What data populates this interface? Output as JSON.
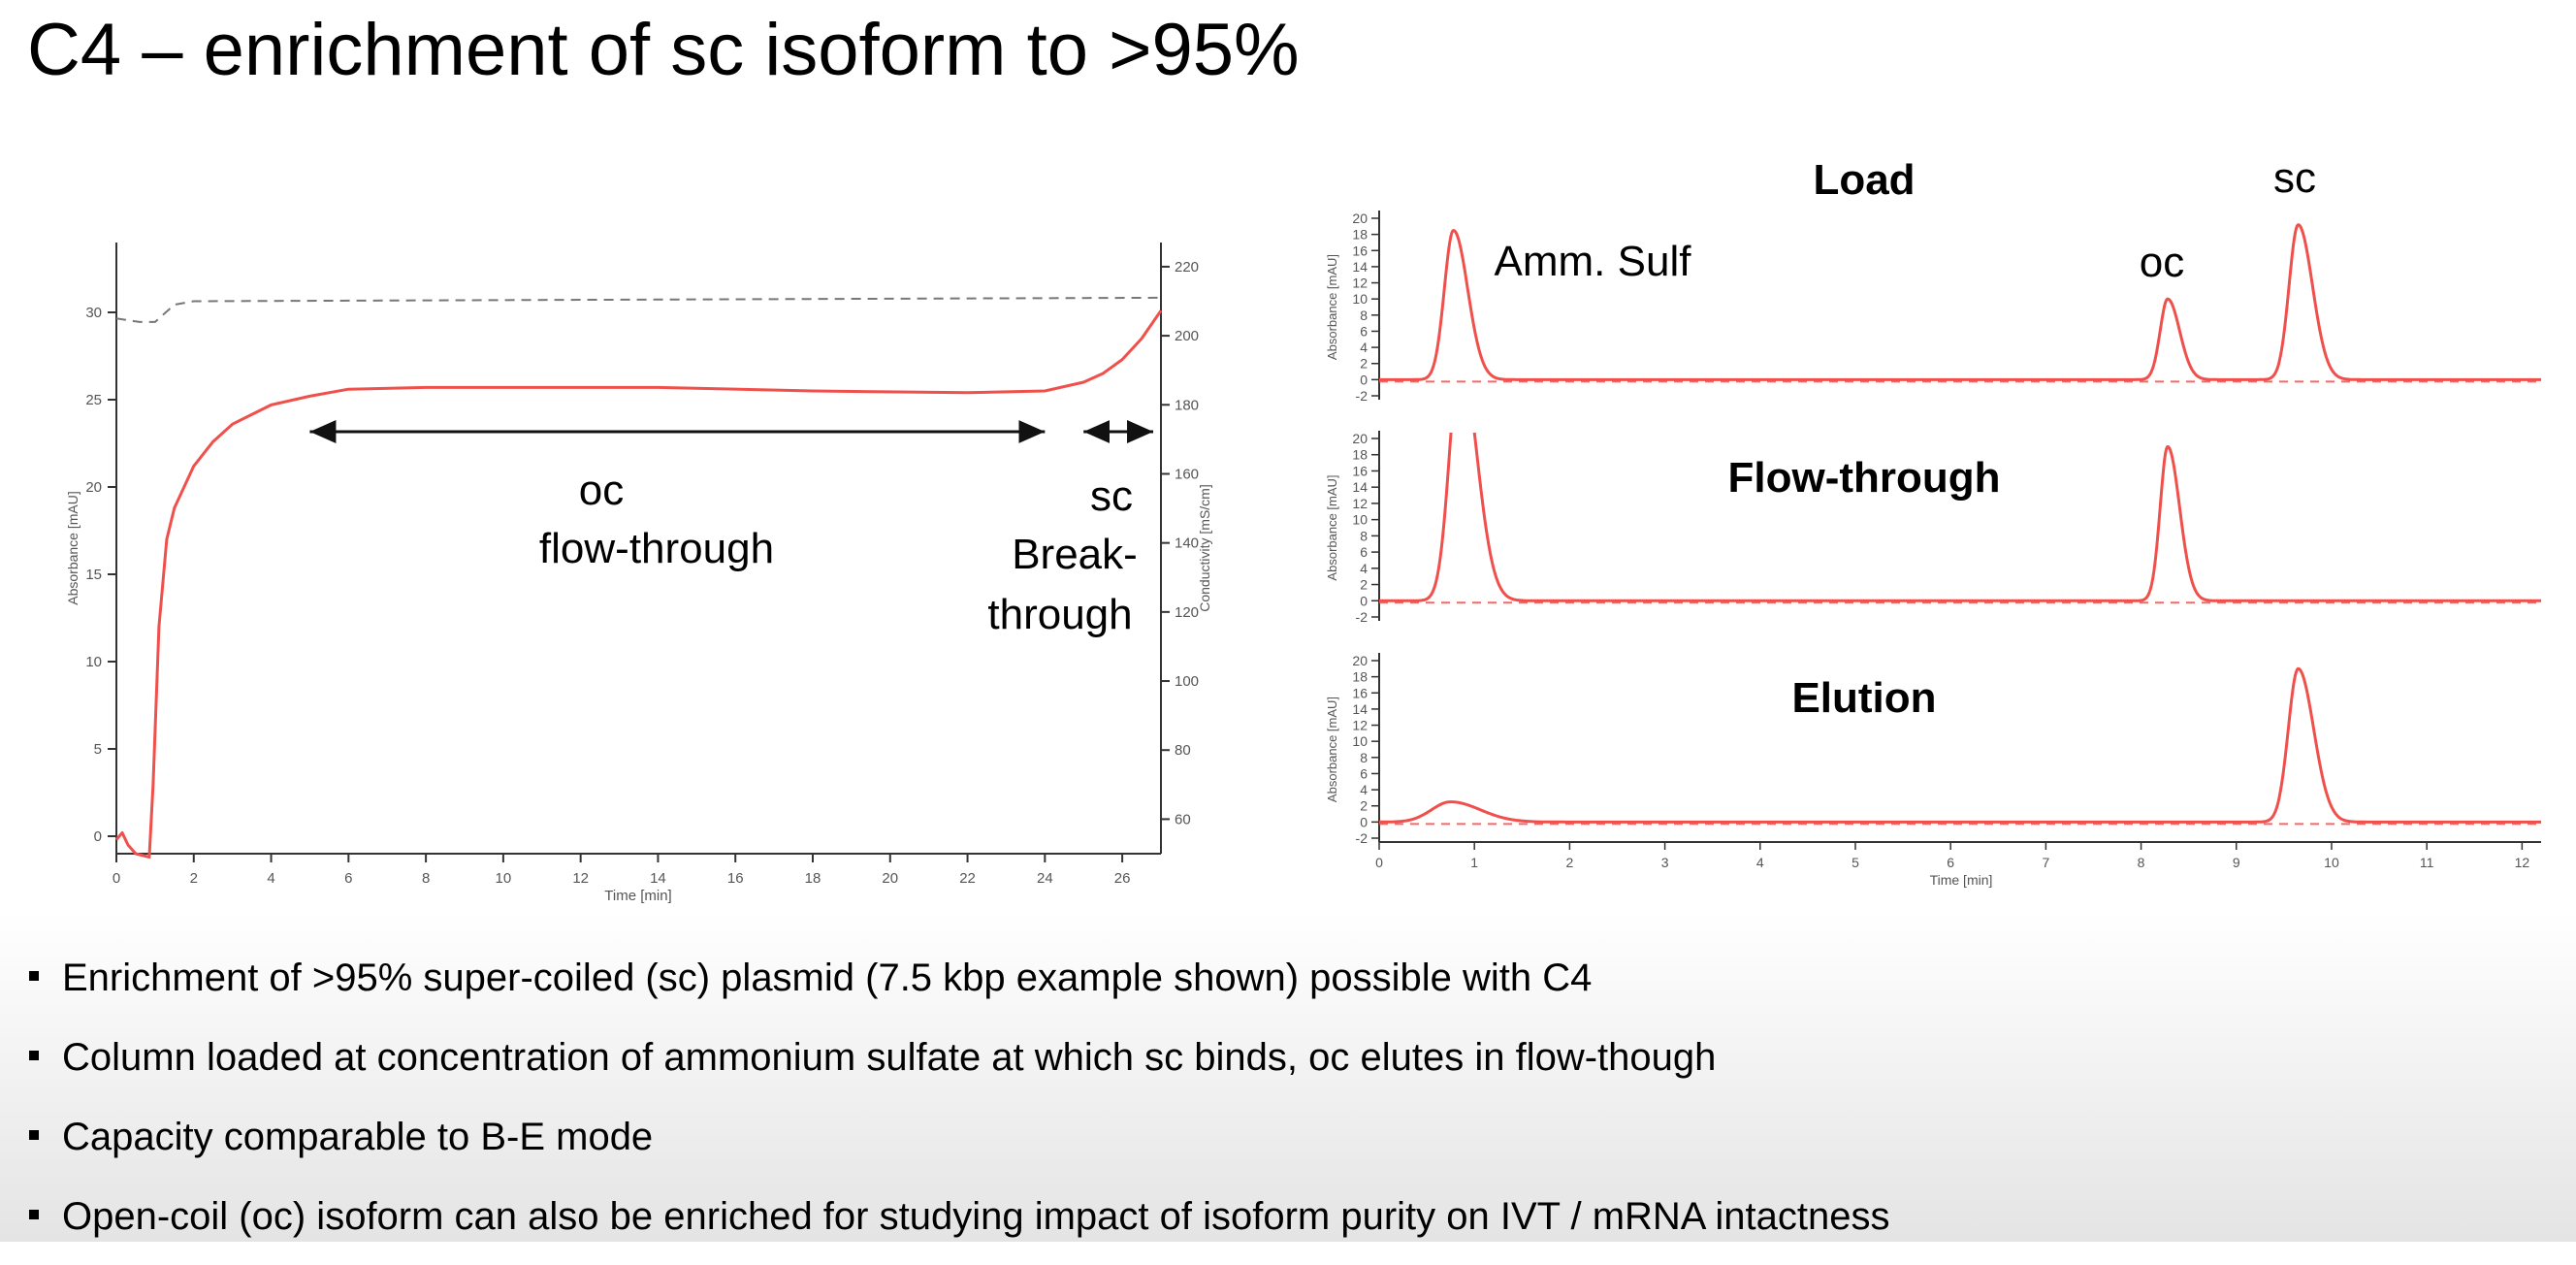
{
  "title": "C4 – enrichment of sc isoform to >95%",
  "colors": {
    "trace": "#f0504c",
    "axis": "#333333",
    "dashed": "#777777"
  },
  "left_chart": {
    "xlabel": "Time [min]",
    "ylabel": "Absorbance [mAU]",
    "y2label": "Conductivity [mS/cm]",
    "annotations": {
      "oc_line1": "oc",
      "oc_line2": "flow-through",
      "sc_line1": "sc",
      "sc_line2": "Break-",
      "sc_line3": "through"
    }
  },
  "right_chart": {
    "xlabel": "Time [min]",
    "ylabel": "Absorbance [mAU]",
    "panels": [
      {
        "title": "Load",
        "labels": [
          "Amm. Sulf",
          "oc",
          "sc"
        ]
      },
      {
        "title": "Flow-through"
      },
      {
        "title": "Elution"
      }
    ]
  },
  "chart_data": [
    {
      "type": "line",
      "xlabel": "Time [min]",
      "ylabel": "Absorbance [mAU]",
      "y2label": "Conductivity [mS/cm]",
      "xlim": [
        0,
        27
      ],
      "ylim": [
        -1,
        34
      ],
      "y2lim": [
        50,
        227
      ],
      "xticks": [
        0,
        2,
        4,
        6,
        8,
        10,
        12,
        14,
        16,
        18,
        20,
        22,
        24,
        26
      ],
      "yticks": [
        0,
        5,
        10,
        15,
        20,
        25,
        30
      ],
      "y2ticks": [
        60,
        80,
        100,
        120,
        140,
        160,
        180,
        200,
        220
      ],
      "series": [
        {
          "axis": "left",
          "x": [
            0,
            0.15,
            0.3,
            0.5,
            0.85,
            0.95,
            1.1,
            1.3,
            1.5,
            2,
            2.5,
            3,
            4,
            5,
            6,
            8,
            10,
            14,
            18,
            22,
            24,
            25,
            25.5,
            26,
            26.5,
            27
          ],
          "y": [
            -0.2,
            0.2,
            -0.5,
            -1.0,
            -1.2,
            3,
            12,
            17,
            18.8,
            21.2,
            22.6,
            23.6,
            24.7,
            25.2,
            25.6,
            25.7,
            25.7,
            25.7,
            25.5,
            25.4,
            25.5,
            26,
            26.5,
            27.3,
            28.5,
            30.1
          ]
        },
        {
          "axis": "right",
          "x": [
            0,
            0.6,
            1.0,
            1.5,
            2,
            27
          ],
          "y": [
            205,
            204,
            204,
            209,
            210,
            211
          ]
        }
      ],
      "arrows": [
        {
          "x": [
            5,
            24
          ],
          "label": "oc flow-through"
        },
        {
          "x": [
            25,
            26.8
          ],
          "label": "sc Break-through"
        }
      ]
    },
    {
      "type": "line",
      "xlabel": "Time [min]",
      "ylabel": "Absorbance [mAU]",
      "xlim": [
        0,
        12.2
      ],
      "xticks": [
        0,
        1,
        2,
        3,
        4,
        5,
        6,
        7,
        8,
        9,
        10,
        11,
        12
      ],
      "panels": [
        {
          "title": "Load",
          "ylim": [
            -2,
            20
          ],
          "yticks": [
            -2,
            0,
            2,
            4,
            6,
            8,
            10,
            12,
            14,
            16,
            18,
            20
          ],
          "baseline": 0,
          "peaks": [
            {
              "label": "Amm. Sulf",
              "center": 0.78,
              "height": 18.5,
              "width": 0.12
            },
            {
              "label": "oc",
              "center": 8.28,
              "height": 10,
              "width": 0.1
            },
            {
              "label": "sc",
              "center": 9.65,
              "height": 19.2,
              "width": 0.12
            }
          ]
        },
        {
          "title": "Flow-through",
          "ylim": [
            -2,
            20
          ],
          "yticks": [
            -2,
            0,
            2,
            4,
            6,
            8,
            10,
            12,
            14,
            16,
            18,
            20
          ],
          "baseline": 0,
          "peaks": [
            {
              "center": 0.85,
              "height": 30,
              "width": 0.14
            },
            {
              "center": 8.28,
              "height": 19,
              "width": 0.1
            }
          ]
        },
        {
          "title": "Elution",
          "ylim": [
            -2,
            20
          ],
          "yticks": [
            -2,
            0,
            2,
            4,
            6,
            8,
            10,
            12,
            14,
            16,
            18,
            20
          ],
          "baseline": 0,
          "peaks": [
            {
              "center": 0.75,
              "height": 2.5,
              "width": 0.25
            },
            {
              "center": 9.65,
              "height": 19,
              "width": 0.13
            }
          ]
        }
      ]
    }
  ],
  "bullets": [
    "Enrichment of >95% super-coiled (sc) plasmid (7.5 kbp example shown) possible with C4",
    "Column loaded at concentration of ammonium sulfate at which sc binds, oc elutes in flow-though",
    "Capacity comparable to B-E mode",
    "Open-coil (oc) isoform can also be enriched for studying impact of isoform purity on IVT / mRNA intactness"
  ]
}
